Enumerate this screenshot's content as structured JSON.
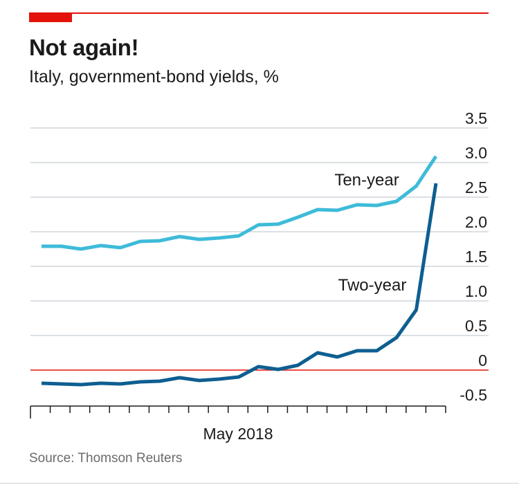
{
  "header": {
    "title": "Not again!",
    "subtitle": "Italy, government-bond yields, %"
  },
  "footer": {
    "source": "Source: Thomson Reuters"
  },
  "colors": {
    "accent": "#e3120b",
    "ten_year": "#3ebbd9",
    "two_year": "#0e5e91",
    "gridline": "#cfd5dc",
    "zero_line": "#e3120b"
  },
  "chart_data": {
    "type": "line",
    "xlabel": "",
    "ylabel": "",
    "x_tick_label": "May 2018",
    "yticks": [
      "3.5",
      "3.0",
      "2.5",
      "2.0",
      "1.5",
      "1.0",
      "0.5",
      "0",
      "-0.5"
    ],
    "ylim": [
      -0.5,
      3.5
    ],
    "y_axis_side": "right",
    "grid": true,
    "series": [
      {
        "name": "Ten-year",
        "values": [
          1.79,
          1.79,
          1.75,
          1.8,
          1.77,
          1.86,
          1.87,
          1.93,
          1.89,
          1.91,
          1.94,
          2.1,
          2.11,
          2.21,
          2.32,
          2.31,
          2.39,
          2.38,
          2.44,
          2.66,
          3.09
        ]
      },
      {
        "name": "Two-year",
        "values": [
          -0.19,
          -0.2,
          -0.21,
          -0.19,
          -0.2,
          -0.17,
          -0.16,
          -0.11,
          -0.15,
          -0.13,
          -0.1,
          0.05,
          0.01,
          0.07,
          0.25,
          0.19,
          0.28,
          0.28,
          0.47,
          0.87,
          2.7
        ]
      }
    ]
  }
}
